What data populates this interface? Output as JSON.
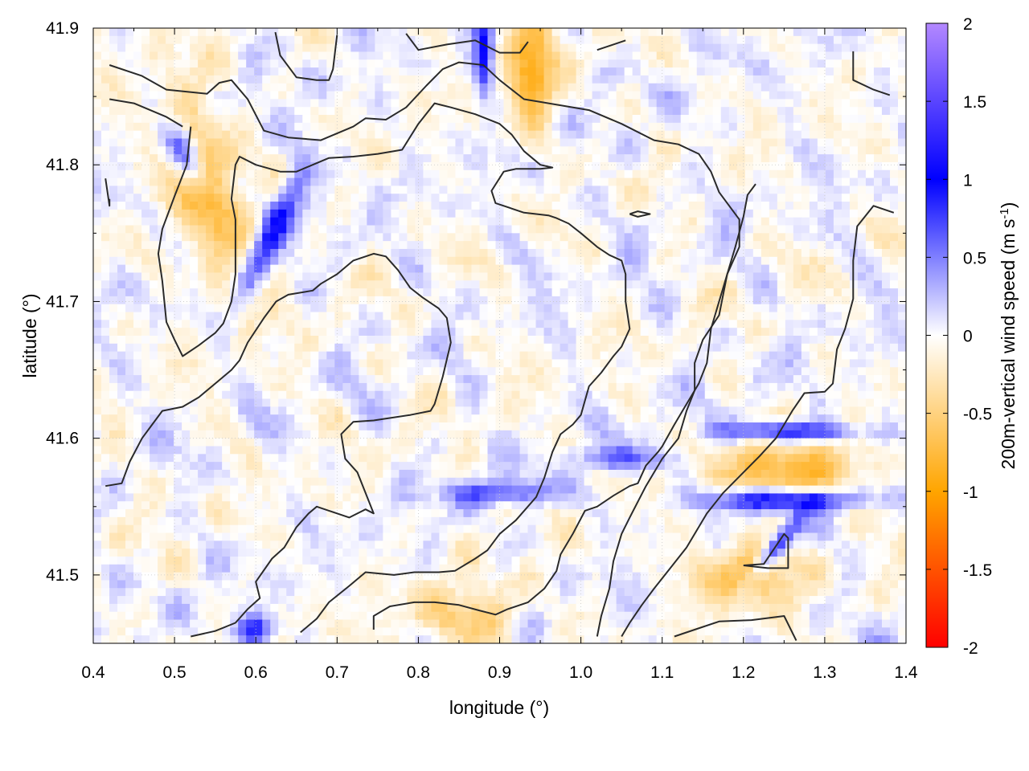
{
  "chart_data": {
    "type": "heatmap",
    "title": "",
    "xlabel": "longitude (°)",
    "ylabel": "latitude (°)",
    "xlim": [
      0.4,
      1.4
    ],
    "ylim": [
      41.45,
      41.9
    ],
    "x_ticks": [
      "0.4",
      "0.5",
      "0.6",
      "0.7",
      "0.8",
      "0.9",
      "1.0",
      "1.1",
      "1.2",
      "1.3",
      "1.4"
    ],
    "y_ticks": [
      "41.5",
      "41.6",
      "41.7",
      "41.8",
      "41.9"
    ],
    "y_tick_values": [
      41.5,
      41.6,
      41.7,
      41.8,
      41.9
    ],
    "grid": true,
    "colorbar": {
      "label_main": "200m-vertical wind speed (m s",
      "label_sup": "-1",
      "label_close": ")",
      "range": [
        -2,
        2
      ],
      "ticks": [
        "2",
        "1.5",
        "1",
        "0.5",
        "0",
        "-0.5",
        "-1",
        "-1.5",
        "-2"
      ],
      "tick_values": [
        2,
        1.5,
        1,
        0.5,
        0,
        -0.5,
        -1,
        -1.5,
        -2
      ],
      "colors": {
        "min": "#ff0000",
        "neg_mid": "#ffa500",
        "zero": "#ffffff",
        "pos_mid": "#0000ff",
        "max": "#b388ff"
      }
    },
    "field_features": [
      {
        "name": "orange band NW",
        "lon": 0.54,
        "lat": 41.78,
        "value": -0.7,
        "sx": 0.025,
        "sy": 0.06,
        "rot": -30
      },
      {
        "name": "blue streaks NW",
        "lon": 0.62,
        "lat": 41.75,
        "value": 0.9,
        "sx": 0.05,
        "sy": 0.01,
        "rot": -50
      },
      {
        "name": "blue streak W",
        "lon": 0.51,
        "lat": 41.81,
        "value": 0.8,
        "sx": 0.02,
        "sy": 0.01,
        "rot": 40
      },
      {
        "name": "orange top",
        "lon": 0.94,
        "lat": 41.87,
        "value": -0.9,
        "sx": 0.02,
        "sy": 0.03,
        "rot": 0
      },
      {
        "name": "blue top",
        "lon": 0.88,
        "lat": 41.88,
        "value": 1.0,
        "sx": 0.008,
        "sy": 0.02,
        "rot": 0
      },
      {
        "name": "blue streaks SE 1",
        "lon": 1.25,
        "lat": 41.555,
        "value": 1.2,
        "sx": 0.07,
        "sy": 0.006,
        "rot": 0
      },
      {
        "name": "blue streaks SE 2",
        "lon": 1.26,
        "lat": 41.605,
        "value": 1.0,
        "sx": 0.06,
        "sy": 0.005,
        "rot": 0
      },
      {
        "name": "blue streak SE 3",
        "lon": 1.24,
        "lat": 41.52,
        "value": 0.9,
        "sx": 0.03,
        "sy": 0.006,
        "rot": -35
      },
      {
        "name": "orange SE",
        "lon": 1.26,
        "lat": 41.575,
        "value": -0.8,
        "sx": 0.06,
        "sy": 0.015,
        "rot": 0
      },
      {
        "name": "orange SE low",
        "lon": 1.2,
        "lat": 41.5,
        "value": -0.8,
        "sx": 0.04,
        "sy": 0.015,
        "rot": 0
      },
      {
        "name": "blue band S",
        "lon": 0.9,
        "lat": 41.56,
        "value": 0.7,
        "sx": 0.05,
        "sy": 0.006,
        "rot": 0
      },
      {
        "name": "blue band SC",
        "lon": 1.05,
        "lat": 41.585,
        "value": 0.6,
        "sx": 0.04,
        "sy": 0.006,
        "rot": 0
      },
      {
        "name": "orange bottom",
        "lon": 0.86,
        "lat": 41.47,
        "value": -0.5,
        "sx": 0.05,
        "sy": 0.015,
        "rot": 0
      },
      {
        "name": "blue bottom W",
        "lon": 0.6,
        "lat": 41.46,
        "value": 0.9,
        "sx": 0.015,
        "sy": 0.008,
        "rot": 0
      }
    ],
    "contours": [
      [
        [
          0.42,
          41.873
        ],
        [
          0.46,
          41.865
        ],
        [
          0.49,
          41.855
        ],
        [
          0.54,
          41.852
        ],
        [
          0.555,
          41.86
        ],
        [
          0.57,
          41.862
        ],
        [
          0.59,
          41.848
        ],
        [
          0.61,
          41.825
        ],
        [
          0.64,
          41.82
        ],
        [
          0.68,
          41.818
        ],
        [
          0.72,
          41.828
        ],
        [
          0.735,
          41.834
        ],
        [
          0.76,
          41.833
        ],
        [
          0.785,
          41.842
        ],
        [
          0.81,
          41.858
        ],
        [
          0.83,
          41.87
        ],
        [
          0.85,
          41.875
        ],
        [
          0.88,
          41.873
        ],
        [
          0.9,
          41.862
        ],
        [
          0.93,
          41.848
        ],
        [
          0.95,
          41.846
        ],
        [
          0.98,
          41.843
        ],
        [
          1.01,
          41.84
        ],
        [
          1.05,
          41.83
        ],
        [
          1.09,
          41.818
        ],
        [
          1.12,
          41.815
        ],
        [
          1.145,
          41.808
        ],
        [
          1.16,
          41.795
        ],
        [
          1.17,
          41.78
        ],
        [
          1.185,
          41.768
        ],
        [
          1.195,
          41.76
        ],
        [
          1.195,
          41.74
        ],
        [
          1.18,
          41.72
        ],
        [
          1.17,
          41.69
        ],
        [
          1.15,
          41.672
        ],
        [
          1.14,
          41.655
        ],
        [
          1.14,
          41.635
        ],
        [
          1.13,
          41.62
        ],
        [
          1.12,
          41.6
        ],
        [
          1.1,
          41.585
        ],
        [
          1.08,
          41.565
        ],
        [
          1.06,
          41.542
        ],
        [
          1.05,
          41.53
        ],
        [
          1.04,
          41.51
        ],
        [
          1.035,
          41.49
        ],
        [
          1.025,
          41.47
        ],
        [
          1.02,
          41.455
        ]
      ],
      [
        [
          0.42,
          41.848
        ],
        [
          0.45,
          41.845
        ],
        [
          0.49,
          41.835
        ],
        [
          0.51,
          41.828
        ]
      ],
      [
        [
          0.52,
          41.828
        ],
        [
          0.515,
          41.8
        ],
        [
          0.5,
          41.777
        ],
        [
          0.485,
          41.753
        ],
        [
          0.48,
          41.735
        ],
        [
          0.485,
          41.715
        ],
        [
          0.49,
          41.685
        ],
        [
          0.5,
          41.672
        ],
        [
          0.51,
          41.66
        ],
        [
          0.53,
          41.668
        ],
        [
          0.55,
          41.677
        ],
        [
          0.56,
          41.684
        ],
        [
          0.57,
          41.7
        ],
        [
          0.575,
          41.72
        ],
        [
          0.575,
          41.76
        ],
        [
          0.57,
          41.775
        ],
        [
          0.575,
          41.8
        ],
        [
          0.58,
          41.806
        ],
        [
          0.6,
          41.8
        ],
        [
          0.63,
          41.795
        ],
        [
          0.65,
          41.795
        ],
        [
          0.67,
          41.8
        ],
        [
          0.69,
          41.805
        ],
        [
          0.72,
          41.806
        ],
        [
          0.75,
          41.808
        ],
        [
          0.78,
          41.811
        ],
        [
          0.8,
          41.83
        ],
        [
          0.82,
          41.845
        ],
        [
          0.84,
          41.842
        ],
        [
          0.87,
          41.837
        ],
        [
          0.9,
          41.83
        ],
        [
          0.915,
          41.822
        ],
        [
          0.93,
          41.81
        ],
        [
          0.95,
          41.8
        ],
        [
          0.965,
          41.798
        ],
        [
          0.95,
          41.797
        ],
        [
          0.92,
          41.797
        ],
        [
          0.905,
          41.795
        ],
        [
          0.89,
          41.781
        ],
        [
          0.895,
          41.772
        ],
        [
          0.93,
          41.765
        ],
        [
          0.96,
          41.763
        ],
        [
          0.97,
          41.761
        ],
        [
          0.985,
          41.757
        ],
        [
          1.0,
          41.75
        ],
        [
          1.02,
          41.74
        ],
        [
          1.035,
          41.734
        ],
        [
          1.05,
          41.73
        ],
        [
          1.055,
          41.72
        ],
        [
          1.055,
          41.7
        ],
        [
          1.06,
          41.68
        ],
        [
          1.05,
          41.667
        ],
        [
          1.04,
          41.66
        ],
        [
          1.025,
          41.648
        ],
        [
          1.01,
          41.638
        ],
        [
          1.0,
          41.617
        ],
        [
          0.99,
          41.61
        ],
        [
          0.975,
          41.603
        ],
        [
          0.965,
          41.59
        ],
        [
          0.955,
          41.571
        ],
        [
          0.945,
          41.557
        ],
        [
          0.92,
          41.54
        ],
        [
          0.9,
          41.53
        ],
        [
          0.885,
          41.518
        ],
        [
          0.87,
          41.512
        ],
        [
          0.845,
          41.503
        ],
        [
          0.825,
          41.502
        ],
        [
          0.795,
          41.502
        ],
        [
          0.77,
          41.5
        ],
        [
          0.735,
          41.502
        ],
        [
          0.715,
          41.492
        ],
        [
          0.69,
          41.48
        ],
        [
          0.675,
          41.468
        ],
        [
          0.655,
          41.458
        ]
      ],
      [
        [
          0.415,
          41.565
        ],
        [
          0.435,
          41.567
        ],
        [
          0.445,
          41.583
        ],
        [
          0.46,
          41.6
        ],
        [
          0.47,
          41.608
        ],
        [
          0.485,
          41.62
        ],
        [
          0.51,
          41.623
        ],
        [
          0.53,
          41.63
        ],
        [
          0.55,
          41.64
        ],
        [
          0.57,
          41.65
        ],
        [
          0.58,
          41.657
        ],
        [
          0.59,
          41.67
        ],
        [
          0.61,
          41.688
        ],
        [
          0.625,
          41.7
        ],
        [
          0.64,
          41.705
        ],
        [
          0.67,
          41.708
        ],
        [
          0.68,
          41.713
        ],
        [
          0.7,
          41.72
        ],
        [
          0.72,
          41.73
        ],
        [
          0.745,
          41.735
        ],
        [
          0.76,
          41.733
        ],
        [
          0.775,
          41.723
        ],
        [
          0.79,
          41.71
        ],
        [
          0.805,
          41.703
        ],
        [
          0.825,
          41.695
        ],
        [
          0.835,
          41.688
        ],
        [
          0.84,
          41.67
        ],
        [
          0.83,
          41.645
        ],
        [
          0.82,
          41.625
        ],
        [
          0.815,
          41.62
        ],
        [
          0.79,
          41.617
        ],
        [
          0.745,
          41.613
        ],
        [
          0.72,
          41.612
        ],
        [
          0.705,
          41.603
        ],
        [
          0.71,
          41.585
        ],
        [
          0.725,
          41.575
        ],
        [
          0.735,
          41.56
        ],
        [
          0.745,
          41.545
        ],
        [
          0.735,
          41.548
        ],
        [
          0.715,
          41.542
        ],
        [
          0.69,
          41.547
        ],
        [
          0.675,
          41.55
        ],
        [
          0.665,
          41.545
        ],
        [
          0.65,
          41.535
        ],
        [
          0.635,
          41.52
        ],
        [
          0.62,
          41.512
        ],
        [
          0.6,
          41.495
        ],
        [
          0.605,
          41.483
        ],
        [
          0.59,
          41.475
        ],
        [
          0.575,
          41.465
        ],
        [
          0.55,
          41.459
        ],
        [
          0.52,
          41.455
        ]
      ],
      [
        [
          0.745,
          41.46
        ],
        [
          0.745,
          41.47
        ],
        [
          0.765,
          41.477
        ],
        [
          0.795,
          41.48
        ],
        [
          0.82,
          41.48
        ],
        [
          0.85,
          41.478
        ],
        [
          0.875,
          41.474
        ],
        [
          0.895,
          41.471
        ],
        [
          0.91,
          41.475
        ],
        [
          0.935,
          41.48
        ],
        [
          0.955,
          41.49
        ],
        [
          0.97,
          41.503
        ],
        [
          0.975,
          41.515
        ],
        [
          0.99,
          41.53
        ],
        [
          1.005,
          41.547
        ],
        [
          1.02,
          41.55
        ],
        [
          1.04,
          41.558
        ],
        [
          1.06,
          41.565
        ],
        [
          1.07,
          41.567
        ],
        [
          1.08,
          41.58
        ],
        [
          1.095,
          41.59
        ],
        [
          1.1,
          41.594
        ],
        [
          1.115,
          41.61
        ],
        [
          1.13,
          41.625
        ],
        [
          1.145,
          41.64
        ],
        [
          1.155,
          41.655
        ],
        [
          1.16,
          41.68
        ],
        [
          1.17,
          41.7
        ],
        [
          1.18,
          41.72
        ],
        [
          1.19,
          41.74
        ],
        [
          1.2,
          41.762
        ],
        [
          1.205,
          41.778
        ],
        [
          1.215,
          41.786
        ]
      ],
      [
        [
          0.415,
          41.79
        ],
        [
          0.42,
          41.77
        ],
        [
          0.42,
          41.775
        ]
      ],
      [
        [
          0.624,
          41.897
        ],
        [
          0.63,
          41.88
        ],
        [
          0.65,
          41.864
        ],
        [
          0.675,
          41.862
        ],
        [
          0.69,
          41.862
        ],
        [
          0.695,
          41.87
        ],
        [
          0.7,
          41.895
        ]
      ],
      [
        [
          0.785,
          41.896
        ],
        [
          0.8,
          41.884
        ],
        [
          0.835,
          41.888
        ],
        [
          0.87,
          41.891
        ],
        [
          0.9,
          41.882
        ],
        [
          0.925,
          41.882
        ],
        [
          0.935,
          41.89
        ]
      ],
      [
        [
          1.02,
          41.884
        ],
        [
          1.04,
          41.888
        ],
        [
          1.055,
          41.891
        ]
      ],
      [
        [
          1.335,
          41.883
        ],
        [
          1.335,
          41.862
        ],
        [
          1.36,
          41.855
        ],
        [
          1.38,
          41.851
        ]
      ],
      [
        [
          1.06,
          41.764
        ],
        [
          1.07,
          41.766
        ],
        [
          1.085,
          41.764
        ],
        [
          1.07,
          41.762
        ],
        [
          1.06,
          41.764
        ]
      ],
      [
        [
          1.115,
          41.455
        ],
        [
          1.14,
          41.46
        ],
        [
          1.17,
          41.466
        ],
        [
          1.21,
          41.467
        ],
        [
          1.25,
          41.47
        ],
        [
          1.265,
          41.452
        ]
      ],
      [
        [
          1.385,
          41.765
        ],
        [
          1.36,
          41.77
        ],
        [
          1.34,
          41.755
        ],
        [
          1.335,
          41.73
        ],
        [
          1.335,
          41.72
        ],
        [
          1.335,
          41.702
        ],
        [
          1.325,
          41.68
        ],
        [
          1.315,
          41.665
        ],
        [
          1.31,
          41.64
        ],
        [
          1.3,
          41.634
        ],
        [
          1.275,
          41.633
        ],
        [
          1.26,
          41.62
        ],
        [
          1.24,
          41.6
        ],
        [
          1.22,
          41.587
        ],
        [
          1.2,
          41.575
        ],
        [
          1.175,
          41.56
        ],
        [
          1.155,
          41.545
        ],
        [
          1.13,
          41.52
        ],
        [
          1.11,
          41.505
        ],
        [
          1.09,
          41.49
        ],
        [
          1.075,
          41.478
        ],
        [
          1.06,
          41.465
        ],
        [
          1.05,
          41.455
        ]
      ],
      [
        [
          1.2,
          41.507
        ],
        [
          1.23,
          41.505
        ],
        [
          1.255,
          41.505
        ],
        [
          1.255,
          41.527
        ],
        [
          1.25,
          41.53
        ],
        [
          1.225,
          41.508
        ],
        [
          1.2,
          41.507
        ]
      ]
    ]
  }
}
